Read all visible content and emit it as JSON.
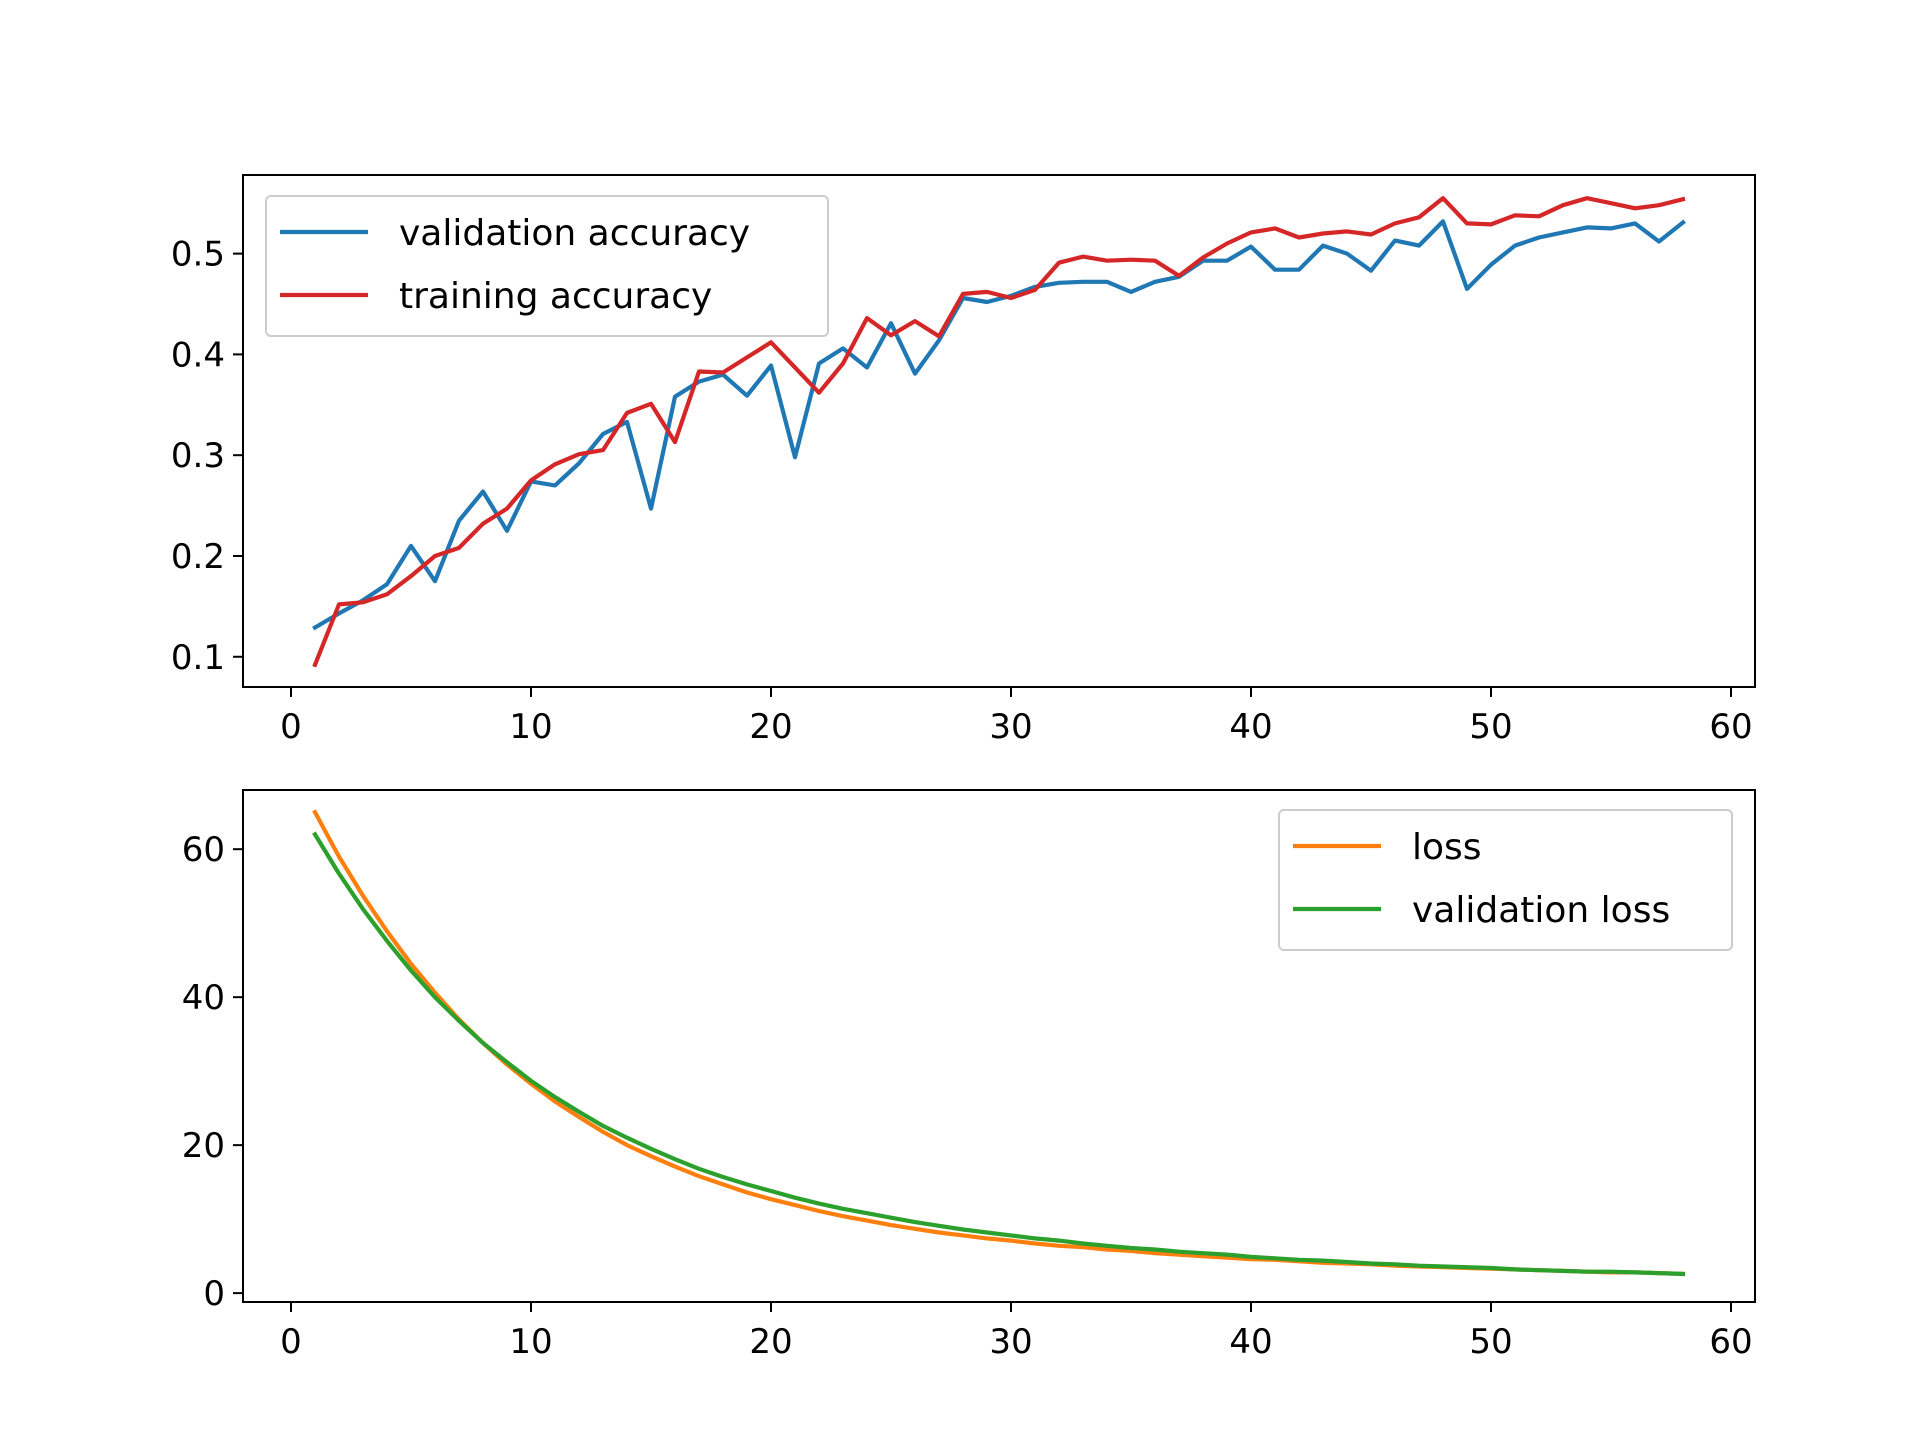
{
  "chart_data": [
    {
      "type": "line",
      "title": "",
      "xlabel": "",
      "ylabel": "",
      "xlim": [
        -2,
        61
      ],
      "ylim": [
        0.07,
        0.578
      ],
      "xticks": [
        0,
        10,
        20,
        30,
        40,
        50,
        60
      ],
      "xtick_labels": [
        "0",
        "10",
        "20",
        "30",
        "40",
        "50",
        "60"
      ],
      "yticks": [
        0.1,
        0.2,
        0.3,
        0.4,
        0.5
      ],
      "ytick_labels": [
        "0.1",
        "0.2",
        "0.3",
        "0.4",
        "0.5"
      ],
      "grid": false,
      "legend_position": "top-left",
      "x": [
        1,
        2,
        3,
        4,
        5,
        6,
        7,
        8,
        9,
        10,
        11,
        12,
        13,
        14,
        15,
        16,
        17,
        18,
        19,
        20,
        21,
        22,
        23,
        24,
        25,
        26,
        27,
        28,
        29,
        30,
        31,
        32,
        33,
        34,
        35,
        36,
        37,
        38,
        39,
        40,
        41,
        42,
        43,
        44,
        45,
        46,
        47,
        48,
        49,
        50,
        51,
        52,
        53,
        54,
        55,
        56,
        57,
        58
      ],
      "series": [
        {
          "name": "validation accuracy",
          "color": "#1f77b4",
          "values": [
            0.129,
            0.143,
            0.156,
            0.172,
            0.21,
            0.175,
            0.235,
            0.264,
            0.225,
            0.274,
            0.27,
            0.292,
            0.321,
            0.333,
            0.247,
            0.358,
            0.373,
            0.38,
            0.359,
            0.389,
            0.298,
            0.391,
            0.406,
            0.387,
            0.431,
            0.381,
            0.414,
            0.456,
            0.452,
            0.458,
            0.467,
            0.471,
            0.472,
            0.472,
            0.462,
            0.472,
            0.477,
            0.493,
            0.493,
            0.507,
            0.484,
            0.484,
            0.508,
            0.5,
            0.483,
            0.513,
            0.508,
            0.532,
            0.465,
            0.489,
            0.508,
            0.516,
            0.521,
            0.526,
            0.525,
            0.53,
            0.512,
            0.531
          ]
        },
        {
          "name": "training accuracy",
          "color": "#d62728",
          "values": [
            0.092,
            0.152,
            0.154,
            0.162,
            0.18,
            0.2,
            0.208,
            0.232,
            0.247,
            0.275,
            0.291,
            0.301,
            0.305,
            0.342,
            0.351,
            0.313,
            0.383,
            0.382,
            0.397,
            0.412,
            0.387,
            0.362,
            0.391,
            0.436,
            0.419,
            0.433,
            0.418,
            0.46,
            0.462,
            0.456,
            0.464,
            0.491,
            0.497,
            0.493,
            0.494,
            0.493,
            0.478,
            0.496,
            0.51,
            0.521,
            0.525,
            0.516,
            0.52,
            0.522,
            0.519,
            0.53,
            0.536,
            0.555,
            0.53,
            0.529,
            0.538,
            0.537,
            0.548,
            0.555,
            0.55,
            0.545,
            0.548,
            0.554
          ]
        }
      ]
    },
    {
      "type": "line",
      "title": "",
      "xlabel": "",
      "ylabel": "",
      "xlim": [
        -2,
        61
      ],
      "ylim": [
        -1.2,
        68
      ],
      "xticks": [
        0,
        10,
        20,
        30,
        40,
        50,
        60
      ],
      "xtick_labels": [
        "0",
        "10",
        "20",
        "30",
        "40",
        "50",
        "60"
      ],
      "yticks": [
        0,
        20,
        40,
        60
      ],
      "ytick_labels": [
        "0",
        "20",
        "40",
        "60"
      ],
      "grid": false,
      "legend_position": "top-right",
      "x": [
        1,
        2,
        3,
        4,
        5,
        6,
        7,
        8,
        9,
        10,
        11,
        12,
        13,
        14,
        15,
        16,
        17,
        18,
        19,
        20,
        21,
        22,
        23,
        24,
        25,
        26,
        27,
        28,
        29,
        30,
        31,
        32,
        33,
        34,
        35,
        36,
        37,
        38,
        39,
        40,
        41,
        42,
        43,
        44,
        45,
        46,
        47,
        48,
        49,
        50,
        51,
        52,
        53,
        54,
        55,
        56,
        57,
        58
      ],
      "series": [
        {
          "name": "loss",
          "color": "#ff7f0e",
          "values": [
            65.0,
            59.0,
            53.7,
            48.9,
            44.5,
            40.6,
            37.0,
            33.8,
            30.9,
            28.3,
            25.9,
            23.8,
            21.8,
            20.0,
            18.5,
            17.1,
            15.8,
            14.7,
            13.6,
            12.7,
            11.9,
            11.1,
            10.4,
            9.8,
            9.2,
            8.7,
            8.2,
            7.8,
            7.4,
            7.1,
            6.7,
            6.4,
            6.2,
            5.9,
            5.7,
            5.4,
            5.2,
            5.0,
            4.8,
            4.6,
            4.5,
            4.3,
            4.1,
            4.0,
            3.9,
            3.7,
            3.6,
            3.5,
            3.4,
            3.3,
            3.2,
            3.1,
            3.0,
            2.9,
            2.8,
            2.8,
            2.7,
            2.6
          ]
        },
        {
          "name": "validation loss",
          "color": "#2ca02c",
          "values": [
            62.0,
            56.7,
            51.9,
            47.6,
            43.6,
            40.0,
            36.8,
            33.8,
            31.2,
            28.7,
            26.5,
            24.5,
            22.6,
            21.0,
            19.5,
            18.1,
            16.8,
            15.7,
            14.7,
            13.8,
            12.9,
            12.1,
            11.4,
            10.8,
            10.2,
            9.6,
            9.1,
            8.6,
            8.2,
            7.8,
            7.4,
            7.1,
            6.7,
            6.4,
            6.1,
            5.9,
            5.6,
            5.4,
            5.2,
            4.9,
            4.7,
            4.5,
            4.4,
            4.2,
            4.0,
            3.9,
            3.7,
            3.6,
            3.5,
            3.4,
            3.2,
            3.1,
            3.0,
            2.9,
            2.9,
            2.8,
            2.7,
            2.6
          ]
        }
      ]
    }
  ]
}
